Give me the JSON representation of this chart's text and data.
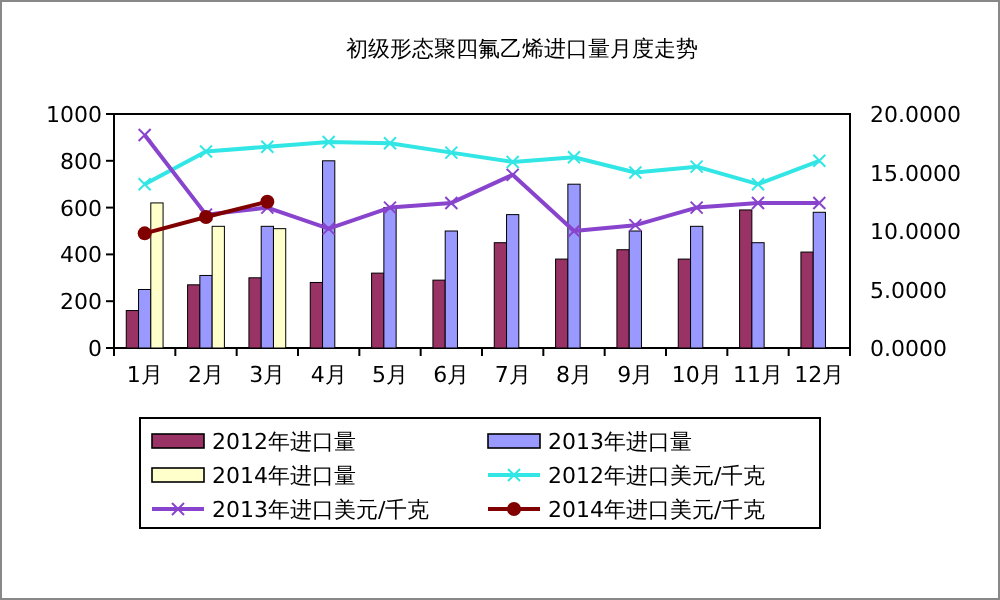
{
  "chart_data": {
    "type": "bar",
    "title": "初级形态聚四氟乙烯进口量月度走势",
    "categories": [
      "1月",
      "2月",
      "3月",
      "4月",
      "5月",
      "6月",
      "7月",
      "8月",
      "9月",
      "10月",
      "11月",
      "12月"
    ],
    "series": [
      {
        "name": "2012年进口量",
        "color": "#993366",
        "values": [
          160,
          270,
          300,
          280,
          320,
          290,
          450,
          380,
          420,
          380,
          590,
          410
        ]
      },
      {
        "name": "2013年进口量",
        "color": "#9999ff",
        "values": [
          250,
          310,
          520,
          800,
          600,
          500,
          570,
          700,
          500,
          520,
          450,
          580
        ]
      },
      {
        "name": "2014年进口量",
        "color": "#ffffcc",
        "values": [
          620,
          520,
          510,
          null,
          null,
          null,
          null,
          null,
          null,
          null,
          null,
          null
        ]
      },
      {
        "name": "2012年进口美元/千克",
        "type": "line",
        "axis": "y2",
        "marker": "cross",
        "color": "#33e6e6",
        "values": [
          14.0,
          16.8,
          17.2,
          17.6,
          17.5,
          16.7,
          15.9,
          16.3,
          15.0,
          15.5,
          14.0,
          16.0
        ]
      },
      {
        "name": "2013年进口美元/千克",
        "type": "line",
        "axis": "y2",
        "marker": "cross",
        "color": "#8844cc",
        "values": [
          18.2,
          11.4,
          12.0,
          10.2,
          12.0,
          12.4,
          14.8,
          10.0,
          10.5,
          12.0,
          12.4,
          12.4
        ]
      },
      {
        "name": "2014年进口美元/千克",
        "type": "line",
        "axis": "y2",
        "marker": "circle",
        "color": "#800000",
        "values": [
          9.8,
          11.2,
          12.5,
          null,
          null,
          null,
          null,
          null,
          null,
          null,
          null,
          null
        ]
      }
    ],
    "ylim": [
      0,
      1000
    ],
    "yticks": [
      0,
      200,
      400,
      600,
      800,
      1000
    ],
    "y2lim": [
      0,
      20
    ],
    "y2ticks": [
      {
        "value": 0,
        "label": "0.0000"
      },
      {
        "value": 5,
        "label": "5.0000"
      },
      {
        "value": 10,
        "label": "10.0000"
      },
      {
        "value": 15,
        "label": "15.0000"
      },
      {
        "value": 20,
        "label": "20.0000"
      }
    ],
    "legend": "bottom"
  }
}
